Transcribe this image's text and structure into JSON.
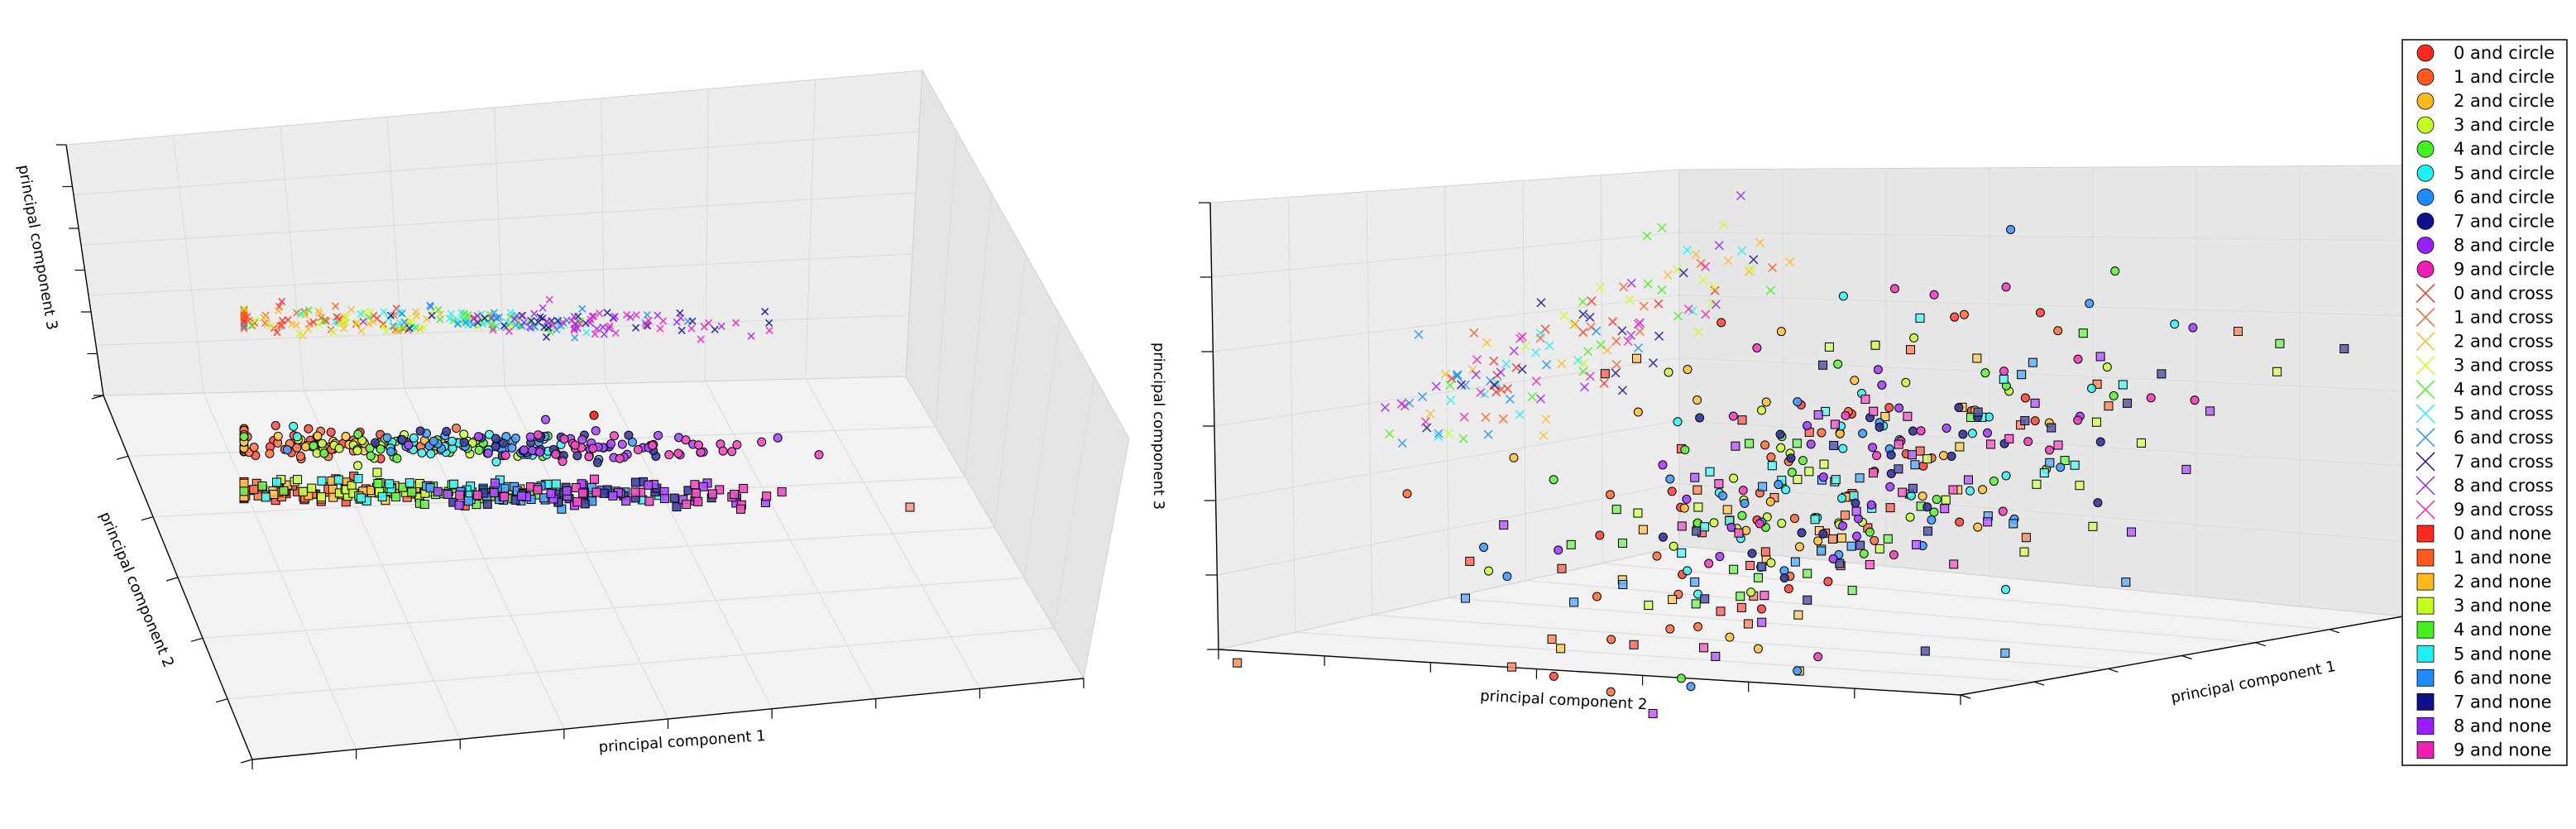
{
  "chart_data": [
    {
      "type": "scatter",
      "projection": "3d",
      "xlabel": "principal component 1",
      "ylabel": "principal component 2",
      "zlabel": "principal component 3",
      "grid": true
    },
    {
      "type": "scatter",
      "projection": "3d",
      "xlabel": "principal component 1",
      "ylabel": "principal component 2",
      "zlabel": "principal component 3",
      "grid": true
    }
  ],
  "legend": {
    "placement": "right",
    "entries": [
      {
        "label": "0 and circle",
        "marker": "circle",
        "color": "#ff2a1e"
      },
      {
        "label": "1 and circle",
        "marker": "circle",
        "color": "#ff5a1e"
      },
      {
        "label": "2 and circle",
        "marker": "circle",
        "color": "#ffb81e"
      },
      {
        "label": "3 and circle",
        "marker": "circle",
        "color": "#c2ff1e"
      },
      {
        "label": "4 and circle",
        "marker": "circle",
        "color": "#45f01e"
      },
      {
        "label": "5 and circle",
        "marker": "circle",
        "color": "#1ef0f0"
      },
      {
        "label": "6 and circle",
        "marker": "circle",
        "color": "#1e8cff"
      },
      {
        "label": "7 and circle",
        "marker": "circle",
        "color": "#10108c"
      },
      {
        "label": "8 and circle",
        "marker": "circle",
        "color": "#9a1eff"
      },
      {
        "label": "9 and circle",
        "marker": "circle",
        "color": "#f01eb4"
      },
      {
        "label": "0 and cross",
        "marker": "cross",
        "color": "#ff2a1e"
      },
      {
        "label": "1 and cross",
        "marker": "cross",
        "color": "#ff5a1e"
      },
      {
        "label": "2 and cross",
        "marker": "cross",
        "color": "#ffb81e"
      },
      {
        "label": "3 and cross",
        "marker": "cross",
        "color": "#c2ff1e"
      },
      {
        "label": "4 and cross",
        "marker": "cross",
        "color": "#45f01e"
      },
      {
        "label": "5 and cross",
        "marker": "cross",
        "color": "#1ef0f0"
      },
      {
        "label": "6 and cross",
        "marker": "cross",
        "color": "#1e8cff"
      },
      {
        "label": "7 and cross",
        "marker": "cross",
        "color": "#10108c"
      },
      {
        "label": "8 and cross",
        "marker": "cross",
        "color": "#9a1eff"
      },
      {
        "label": "9 and cross",
        "marker": "cross",
        "color": "#f01eb4"
      },
      {
        "label": "0 and none",
        "marker": "square",
        "color": "#ff2a1e"
      },
      {
        "label": "1 and none",
        "marker": "square",
        "color": "#ff5a1e"
      },
      {
        "label": "2 and none",
        "marker": "square",
        "color": "#ffb81e"
      },
      {
        "label": "3 and none",
        "marker": "square",
        "color": "#c2ff1e"
      },
      {
        "label": "4 and none",
        "marker": "square",
        "color": "#45f01e"
      },
      {
        "label": "5 and none",
        "marker": "square",
        "color": "#1ef0f0"
      },
      {
        "label": "6 and none",
        "marker": "square",
        "color": "#1e8cff"
      },
      {
        "label": "7 and none",
        "marker": "square",
        "color": "#10108c"
      },
      {
        "label": "8 and none",
        "marker": "square",
        "color": "#9a1eff"
      },
      {
        "label": "9 and none",
        "marker": "square",
        "color": "#f01eb4"
      }
    ]
  }
}
